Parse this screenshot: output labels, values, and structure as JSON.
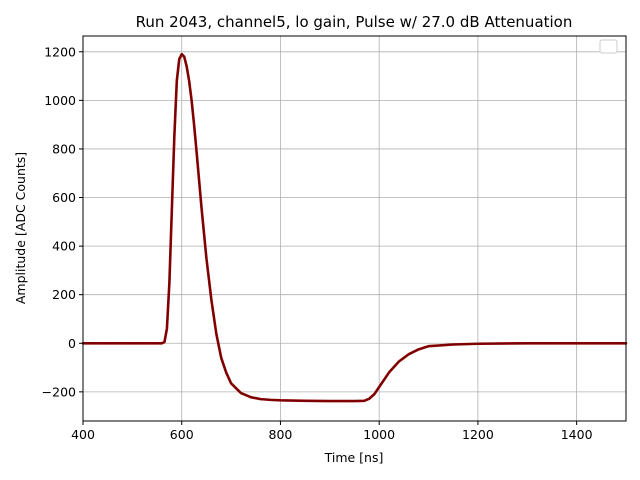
{
  "chart_data": {
    "type": "line",
    "title": "Run 2043, channel5, lo gain, Pulse w/ 27.0 dB Attenuation",
    "xlabel": "Time [ns]",
    "ylabel": "Amplitude [ADC Counts]",
    "xlim": [
      400,
      1500
    ],
    "ylim": [
      -320,
      1265
    ],
    "xticks": [
      400,
      600,
      800,
      1000,
      1200,
      1400
    ],
    "yticks": [
      -200,
      0,
      200,
      400,
      600,
      800,
      1000,
      1200
    ],
    "xtick_labels": [
      "400",
      "600",
      "800",
      "1000",
      "1200",
      "1400"
    ],
    "ytick_labels": [
      "−200",
      "0",
      "200",
      "400",
      "600",
      "800",
      "1000",
      "1200"
    ],
    "grid": true,
    "legend": "top-right (empty)",
    "series": [
      {
        "color": "#8b0000",
        "x": [
          400,
          500,
          550,
          560,
          565,
          570,
          575,
          580,
          585,
          590,
          595,
          600,
          605,
          610,
          615,
          620,
          625,
          630,
          640,
          650,
          660,
          670,
          680,
          690,
          700,
          720,
          740,
          760,
          780,
          800,
          850,
          900,
          950,
          970,
          980,
          990,
          1000,
          1020,
          1040,
          1060,
          1080,
          1100,
          1150,
          1200,
          1300,
          1400,
          1500
        ],
        "y": [
          0,
          0,
          0,
          0,
          5,
          60,
          250,
          550,
          850,
          1080,
          1170,
          1190,
          1180,
          1140,
          1080,
          1000,
          900,
          790,
          560,
          350,
          180,
          40,
          -60,
          -120,
          -165,
          -205,
          -222,
          -230,
          -233,
          -235,
          -237,
          -238,
          -238,
          -237,
          -228,
          -210,
          -180,
          -120,
          -75,
          -45,
          -25,
          -12,
          -5,
          -2,
          0,
          0,
          0
        ]
      }
    ]
  }
}
